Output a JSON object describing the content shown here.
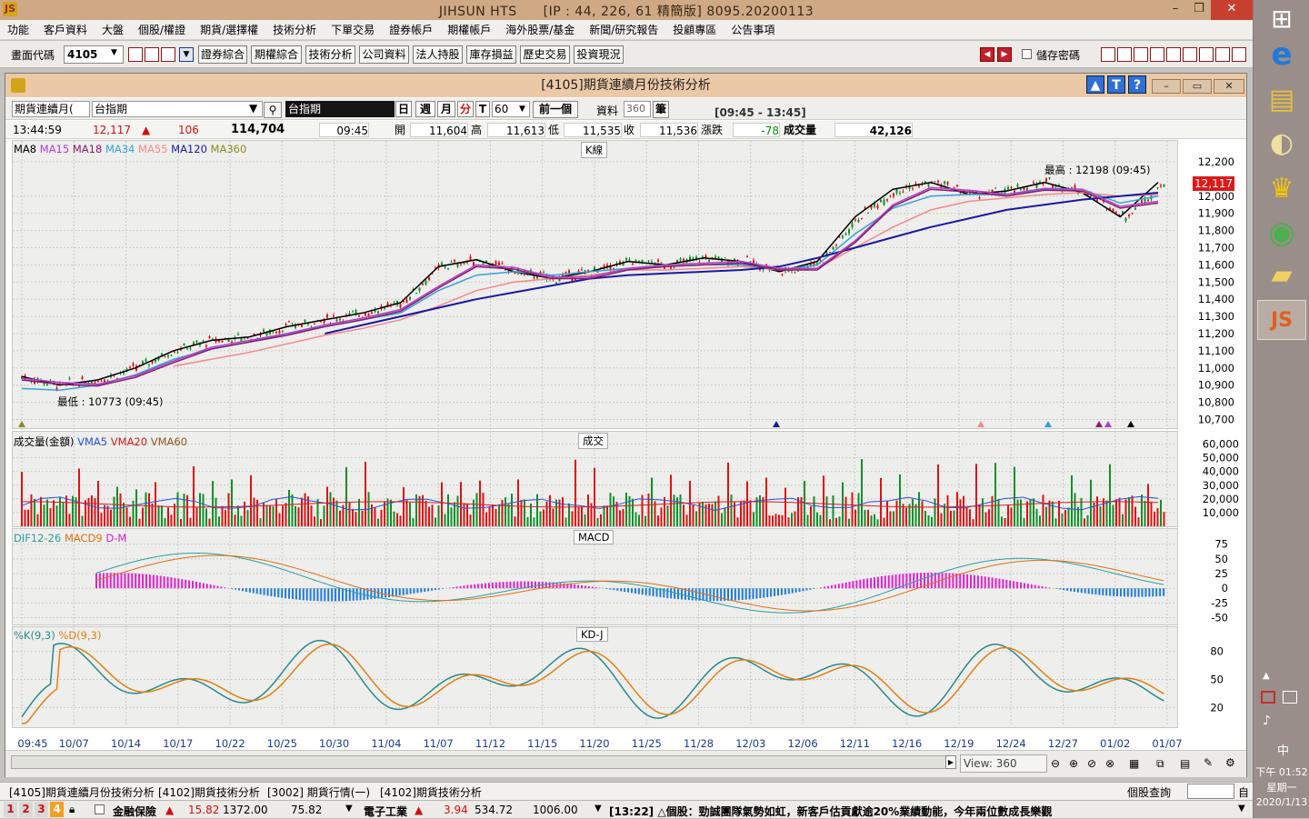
{
  "app": {
    "title": "JIHSUN HTS　　[IP : 44, 226, 61 精簡版] 8095.20200113",
    "icon_text": "JS"
  },
  "menu": [
    "功能",
    "客戶資料",
    "大盤",
    "個股/權證",
    "期貨/選擇權",
    "技術分析",
    "下單交易",
    "證券帳戶",
    "期權帳戶",
    "海外股票/基金",
    "新聞/研究報告",
    "投顧專區",
    "公告事項"
  ],
  "toolbar": {
    "code_label": "畫面代碼",
    "code_value": "4105",
    "buttons": [
      "證券綜合",
      "期權綜合",
      "技術分析",
      "公司資料",
      "法人持股",
      "庫存損益",
      "歷史交易",
      "投資現況"
    ],
    "save_pwd_label": "儲存密碼"
  },
  "window": {
    "title": "[4105]期貨連續月份技術分析"
  },
  "controls": {
    "product_select": "期貨連續月(",
    "symbol": "台指期",
    "symbol_name": "台指期",
    "period_tabs": [
      "日",
      "週",
      "月",
      "分",
      "T"
    ],
    "interval": "60",
    "prev_label": "前一個",
    "data_label": "資料",
    "data_count": "360",
    "unit_label": "筆",
    "time_range": "[09:45 - 13:45]"
  },
  "quote": {
    "time": "13:44:59",
    "price": "12,117",
    "arrow": "▲",
    "change": "106",
    "volume_total": "114,704",
    "bar_time": "09:45",
    "open_label": "開",
    "open": "11,604",
    "high_label": "高",
    "high": "11,613",
    "low_label": "低",
    "low": "11,535",
    "close_label": "收",
    "close": "11,536",
    "chg_label": "漲跌",
    "chg": "-78",
    "vol_label": "成交量",
    "vol": "42,126"
  },
  "indicators": {
    "ma": [
      {
        "name": "MA8",
        "color": "#000000"
      },
      {
        "name": "MA15",
        "color": "#b040c8"
      },
      {
        "name": "MA18",
        "color": "#8b1a6e"
      },
      {
        "name": "MA34",
        "color": "#31a4d6"
      },
      {
        "name": "MA55",
        "color": "#f08a8a"
      },
      {
        "name": "MA120",
        "color": "#1a1aa0"
      },
      {
        "name": "MA360",
        "color": "#8b8b20"
      }
    ],
    "vol": [
      {
        "name": "成交量(金額)",
        "color": "#000000"
      },
      {
        "name": "VMA5",
        "color": "#2a52d8"
      },
      {
        "name": "VMA20",
        "color": "#d02020"
      },
      {
        "name": "VMA60",
        "color": "#8b5a20"
      }
    ],
    "macd": [
      {
        "name": "DIF12-26",
        "color": "#2aa0a0"
      },
      {
        "name": "MACD9",
        "color": "#e07010"
      },
      {
        "name": "D-M",
        "color": "#d020d0"
      }
    ],
    "kd": [
      {
        "name": "%K(9,3)",
        "color": "#2a8a8a"
      },
      {
        "name": "%D(9,3)",
        "color": "#e08010"
      }
    ]
  },
  "panels": {
    "kline": "K線",
    "volume": "成交",
    "macd": "MACD",
    "kd": "KD-J"
  },
  "chart_data": [
    {
      "type": "line",
      "title": "K線",
      "x_ticks": [
        "09:45",
        "10/07",
        "10/14",
        "10/17",
        "10/22",
        "10/25",
        "10/30",
        "11/04",
        "11/07",
        "11/12",
        "11/15",
        "11/20",
        "11/25",
        "11/28",
        "12/03",
        "12/06",
        "12/11",
        "12/16",
        "12/19",
        "12/24",
        "12/27",
        "01/02",
        "01/07"
      ],
      "y_ticks": [
        12200,
        12000,
        11900,
        11800,
        11700,
        11600,
        11500,
        11400,
        11300,
        11200,
        11100,
        11000,
        10900,
        10800,
        10700
      ],
      "ylim": [
        10660,
        12290
      ],
      "last_price": "12,117",
      "annotations": {
        "high": "最高 : 12198 (09:45)",
        "low": "最低 : 10773 (09:45)"
      },
      "series": [
        {
          "name": "MA8",
          "values": [
            10950,
            10900,
            10930,
            11000,
            11100,
            11160,
            11180,
            11240,
            11280,
            11320,
            11380,
            11590,
            11630,
            11560,
            11520,
            11560,
            11620,
            11600,
            11640,
            11620,
            11560,
            11620,
            11880,
            12040,
            12080,
            12010,
            12030,
            12080,
            12020,
            11880,
            12080
          ]
        },
        {
          "name": "MA34",
          "values": [
            10880,
            10870,
            10900,
            10960,
            11050,
            11110,
            11150,
            11200,
            11240,
            11280,
            11320,
            11450,
            11540,
            11560,
            11540,
            11560,
            11580,
            11590,
            11600,
            11600,
            11570,
            11600,
            11780,
            11930,
            12000,
            12010,
            12010,
            12040,
            12040,
            11960,
            12000
          ]
        },
        {
          "name": "MA55",
          "values": [
            null,
            null,
            null,
            null,
            11010,
            11050,
            11090,
            11140,
            11190,
            11230,
            11280,
            11360,
            11450,
            11500,
            11520,
            11540,
            11570,
            11570,
            11580,
            11590,
            11570,
            11580,
            11700,
            11820,
            11920,
            11970,
            11990,
            12010,
            12020,
            12000,
            12010
          ]
        },
        {
          "name": "MA120",
          "values": [
            null,
            null,
            null,
            null,
            null,
            null,
            null,
            null,
            11200,
            11250,
            11300,
            11350,
            11400,
            11440,
            11480,
            11520,
            11540,
            11550,
            11560,
            11570,
            11590,
            11640,
            11700,
            11760,
            11820,
            11870,
            11920,
            11950,
            11980,
            12000,
            12020
          ]
        }
      ]
    },
    {
      "type": "bar",
      "title": "成交",
      "y_ticks": [
        60000,
        50000,
        40000,
        30000,
        20000,
        10000
      ],
      "ylim": [
        0,
        65000
      ]
    },
    {
      "type": "line",
      "title": "MACD",
      "y_ticks": [
        75,
        50,
        25,
        0,
        -25,
        -50
      ],
      "ylim": [
        -60,
        90
      ]
    },
    {
      "type": "line",
      "title": "KD-J",
      "y_ticks": [
        80,
        50,
        20
      ],
      "ylim": [
        0,
        100
      ]
    }
  ],
  "bottom": {
    "view_label": "View:",
    "view_value": "360",
    "tabs": [
      "[4105]期貨連續月份技術分析",
      "[4102]期貨技術分析",
      "[3002] 期貨行情(一)",
      "[4102]期貨技術分析"
    ],
    "search_label": "個股查詢"
  },
  "ticker": {
    "nums": [
      "1",
      "2",
      "3",
      "4"
    ],
    "item1": {
      "name": "金融保險",
      "arrow": "▲",
      "chg": "15.82",
      "idx": "1372.00",
      "v": "75.82"
    },
    "item2": {
      "name": "電子工業",
      "arrow": "▲",
      "chg": "3.94",
      "idx": "534.72",
      "v": "1006.00"
    },
    "news": "[13:22] △個股：勁誠團隊氣勢如虹，新客戶估貢獻逾20%業績動能，今年兩位數成長樂觀"
  },
  "taskbar": {
    "ime": "中",
    "time": "下午 01:52",
    "weekday": "星期一",
    "date": "2020/1/13"
  }
}
